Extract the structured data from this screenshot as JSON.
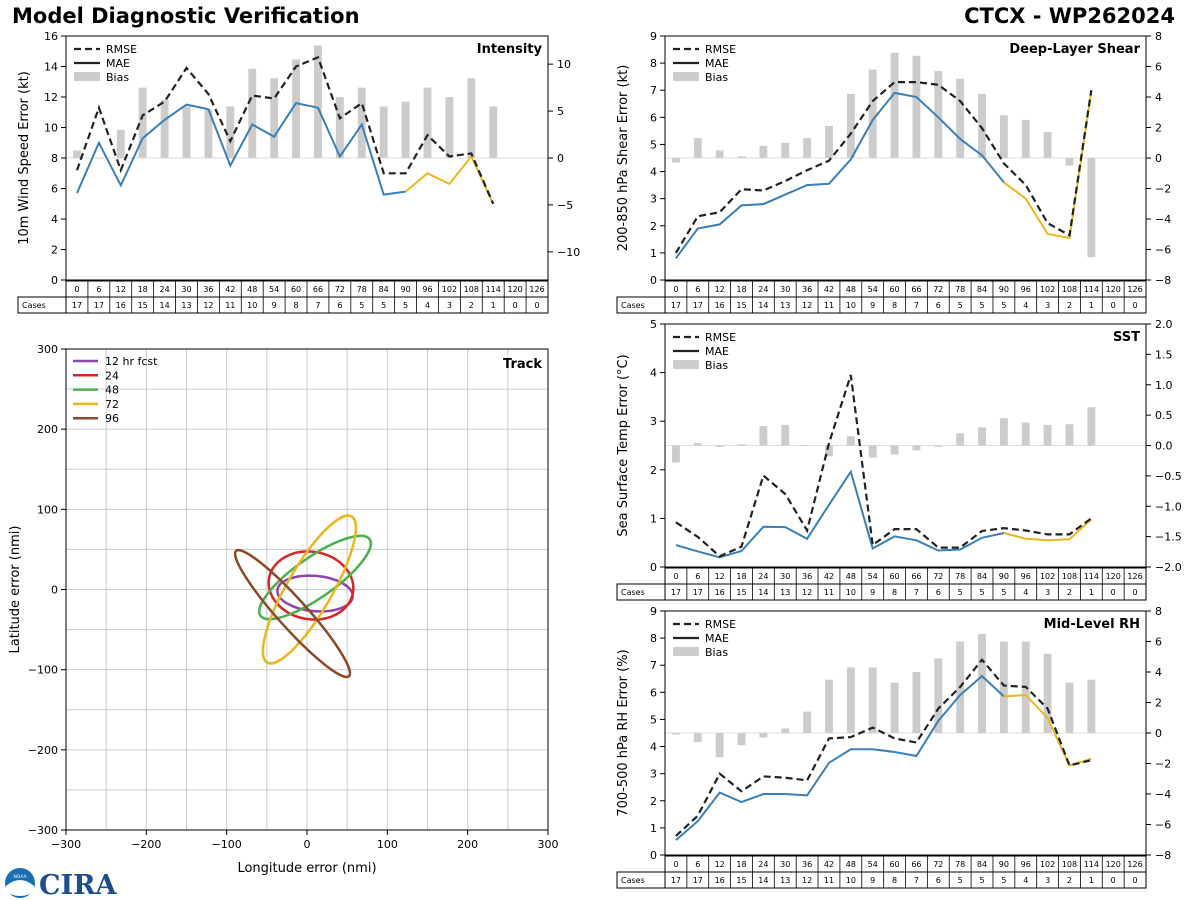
{
  "header": {
    "left_title": "Model Diagnostic Verification",
    "right_title": "CTCX - WP262024"
  },
  "logo": {
    "text": "CIRA",
    "agency_text": "NOAA"
  },
  "colors": {
    "rmse": "#222222",
    "mae": "#3a7fb5",
    "bias": "#cccccc",
    "late": "#e8b820",
    "grid": "#cccccc"
  },
  "table": {
    "cases_label": "Cases",
    "hours": [
      "0",
      "6",
      "12",
      "18",
      "24",
      "30",
      "36",
      "42",
      "48",
      "54",
      "60",
      "66",
      "72",
      "78",
      "84",
      "90",
      "96",
      "102",
      "108",
      "114",
      "120",
      "126"
    ],
    "cases": [
      "17",
      "17",
      "16",
      "15",
      "14",
      "13",
      "12",
      "11",
      "10",
      "9",
      "8",
      "7",
      "6",
      "5",
      "5",
      "5",
      "4",
      "3",
      "2",
      "1",
      "0",
      "0"
    ]
  },
  "chart_data": [
    {
      "type": "line",
      "title": "Intensity",
      "ylabel": "10m Wind Speed Error (kt)",
      "ylim": [
        0,
        16
      ],
      "y2lim": [
        -13,
        13
      ],
      "yticks": [
        "0",
        "2",
        "4",
        "6",
        "8",
        "10",
        "12",
        "14",
        "16"
      ],
      "y2ticks": [
        "−10",
        "−5",
        "0",
        "5",
        "10"
      ],
      "legend": [
        "RMSE",
        "MAE",
        "Bias"
      ],
      "x": [
        0,
        6,
        12,
        18,
        24,
        30,
        36,
        42,
        48,
        54,
        60,
        66,
        72,
        78,
        84,
        90,
        96,
        102,
        108,
        114
      ],
      "rmse": [
        7.2,
        11.3,
        7.2,
        10.8,
        11.7,
        13.9,
        12.2,
        9.1,
        12.1,
        11.9,
        14.0,
        14.6,
        10.6,
        11.6,
        7.0,
        7.0,
        9.5,
        8.1,
        8.3,
        5.0
      ],
      "mae": [
        5.7,
        9.0,
        6.2,
        9.3,
        10.5,
        11.5,
        11.2,
        7.5,
        10.2,
        9.4,
        11.6,
        11.3,
        8.1,
        10.2,
        5.6,
        5.8,
        7.0,
        6.3,
        8.1,
        5.0
      ],
      "bias": [
        0.8,
        0,
        3.0,
        7.5,
        6.2,
        5.5,
        5.2,
        5.5,
        9.5,
        8.5,
        10.5,
        12.0,
        6.5,
        7.5,
        5.5,
        6.0,
        7.5,
        6.5,
        8.5,
        5.5
      ]
    },
    {
      "type": "line",
      "title": "Deep-Layer Shear",
      "ylabel": "200-850 hPa Shear Error (kt)",
      "ylim": [
        0,
        9
      ],
      "y2lim": [
        -8,
        8
      ],
      "yticks": [
        "0",
        "1",
        "2",
        "3",
        "4",
        "5",
        "6",
        "7",
        "8",
        "9"
      ],
      "y2ticks": [
        "−8",
        "−6",
        "−4",
        "−2",
        "0",
        "2",
        "4",
        "6",
        "8"
      ],
      "legend": [
        "RMSE",
        "MAE",
        "Bias"
      ],
      "x": [
        0,
        6,
        12,
        18,
        24,
        30,
        36,
        42,
        48,
        54,
        60,
        66,
        72,
        78,
        84,
        90,
        96,
        102,
        108,
        114
      ],
      "rmse": [
        1.0,
        2.35,
        2.5,
        3.35,
        3.3,
        3.65,
        4.05,
        4.4,
        5.4,
        6.6,
        7.3,
        7.3,
        7.2,
        6.6,
        5.6,
        4.3,
        3.5,
        2.1,
        1.65,
        7.0
      ],
      "mae": [
        0.8,
        1.9,
        2.05,
        2.75,
        2.8,
        3.15,
        3.5,
        3.55,
        4.45,
        5.9,
        6.9,
        6.75,
        6.0,
        5.2,
        4.6,
        3.6,
        3.0,
        1.7,
        1.55,
        6.95
      ],
      "bias": [
        -0.3,
        1.3,
        0.5,
        0.1,
        0.8,
        1.0,
        1.3,
        2.1,
        4.2,
        5.8,
        6.9,
        6.7,
        5.7,
        5.2,
        4.2,
        2.8,
        2.5,
        1.7,
        -0.5,
        -6.5
      ]
    },
    {
      "type": "line",
      "title": "SST",
      "ylabel": "Sea Surface Temp Error (°C)",
      "ylim": [
        0,
        5
      ],
      "y2lim": [
        -2.0,
        2.0
      ],
      "yticks": [
        "0",
        "1",
        "2",
        "3",
        "4",
        "5"
      ],
      "y2ticks": [
        "−2.0",
        "−1.5",
        "−1.0",
        "−0.5",
        "0.0",
        "0.5",
        "1.0",
        "1.5",
        "2.0"
      ],
      "legend": [
        "RMSE",
        "MAE",
        "Bias"
      ],
      "x": [
        0,
        6,
        12,
        18,
        24,
        30,
        36,
        42,
        48,
        54,
        60,
        66,
        72,
        78,
        84,
        90,
        96,
        102,
        108,
        114
      ],
      "rmse": [
        0.92,
        0.62,
        0.22,
        0.42,
        1.88,
        1.5,
        0.75,
        2.55,
        3.95,
        0.45,
        0.78,
        0.78,
        0.4,
        0.4,
        0.74,
        0.8,
        0.75,
        0.67,
        0.67,
        1.0
      ],
      "mae": [
        0.45,
        0.32,
        0.2,
        0.33,
        0.83,
        0.82,
        0.58,
        1.28,
        1.96,
        0.38,
        0.63,
        0.55,
        0.34,
        0.36,
        0.6,
        0.7,
        0.58,
        0.55,
        0.57,
        0.98
      ],
      "bias": [
        -0.28,
        0.04,
        -0.02,
        0.02,
        0.32,
        0.34,
        0.01,
        -0.18,
        0.15,
        -0.2,
        -0.15,
        -0.08,
        -0.02,
        0.2,
        0.3,
        0.45,
        0.38,
        0.34,
        0.35,
        0.63
      ]
    },
    {
      "type": "line",
      "title": "Mid-Level RH",
      "ylabel": "700-500 hPa RH Error (%)",
      "ylim": [
        0,
        9
      ],
      "y2lim": [
        -8,
        8
      ],
      "yticks": [
        "0",
        "1",
        "2",
        "3",
        "4",
        "5",
        "6",
        "7",
        "8",
        "9"
      ],
      "y2ticks": [
        "−8",
        "−6",
        "−4",
        "−2",
        "0",
        "2",
        "4",
        "6",
        "8"
      ],
      "legend": [
        "RMSE",
        "MAE",
        "Bias"
      ],
      "x": [
        0,
        6,
        12,
        18,
        24,
        30,
        36,
        42,
        48,
        54,
        60,
        66,
        72,
        78,
        84,
        90,
        96,
        102,
        108,
        114
      ],
      "rmse": [
        0.7,
        1.45,
        3.0,
        2.35,
        2.9,
        2.85,
        2.75,
        4.3,
        4.35,
        4.7,
        4.3,
        4.15,
        5.4,
        6.2,
        7.2,
        6.25,
        6.2,
        5.4,
        3.3,
        3.5
      ],
      "mae": [
        0.55,
        1.25,
        2.3,
        1.95,
        2.25,
        2.25,
        2.2,
        3.4,
        3.9,
        3.9,
        3.8,
        3.65,
        4.95,
        5.9,
        6.6,
        5.85,
        5.9,
        5.05,
        3.3,
        3.55
      ],
      "bias": [
        -0.1,
        -0.6,
        -1.6,
        -0.8,
        -0.3,
        0.3,
        1.4,
        3.5,
        4.3,
        4.3,
        3.3,
        4.0,
        4.9,
        6.0,
        6.5,
        6.0,
        6.0,
        5.2,
        3.3,
        3.5
      ]
    },
    {
      "type": "scatter",
      "title": "Track",
      "xlabel": "Longitude error (nmi)",
      "ylabel": "Latitude error (nmi)",
      "xlim": [
        -300,
        300
      ],
      "ylim": [
        -300,
        300
      ],
      "ticks": [
        "−300",
        "−200",
        "−100",
        "0",
        "100",
        "200",
        "300"
      ],
      "ellipses": [
        {
          "label": "12 hr fcst",
          "color": "#8e44ad",
          "cx": 10,
          "cy": -5,
          "rx": 47,
          "ry": 22,
          "angle": 5
        },
        {
          "label": "24",
          "color": "#d62728",
          "cx": 5,
          "cy": 5,
          "rx": 53,
          "ry": 42,
          "angle": 10
        },
        {
          "label": "48",
          "color": "#4caf50",
          "cx": 10,
          "cy": 15,
          "rx": 83,
          "ry": 25,
          "angle": -35
        },
        {
          "label": "72",
          "color": "#e8b820",
          "cx": 3,
          "cy": 0,
          "rx": 105,
          "ry": 28,
          "angle": -60
        },
        {
          "label": "96",
          "color": "#8b4a2a",
          "cx": -18,
          "cy": -30,
          "rx": 105,
          "ry": 18,
          "angle": 48
        }
      ]
    }
  ]
}
